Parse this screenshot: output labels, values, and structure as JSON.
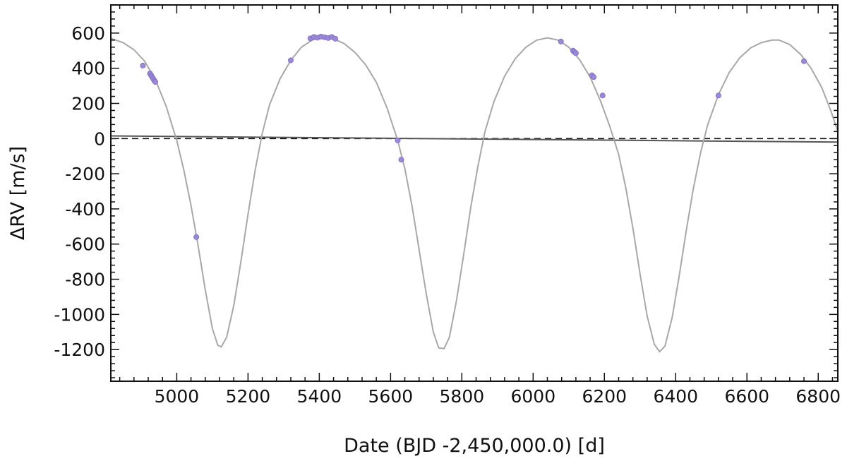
{
  "chart_data": {
    "type": "line",
    "title": "",
    "xlabel": "Date (BJD -2,450,000.0) [d]",
    "ylabel": "ΔRV [m/s]",
    "xlim": [
      4815,
      6855
    ],
    "ylim": [
      -1380,
      760
    ],
    "x_ticks": [
      5000,
      5200,
      5400,
      5600,
      5800,
      6000,
      6200,
      6400,
      6600,
      6800
    ],
    "y_ticks": [
      600,
      400,
      200,
      0,
      -200,
      -400,
      -600,
      -800,
      -1000,
      -1200
    ],
    "x_tick_labels": [
      "5000",
      "5200",
      "5400",
      "5600",
      "5800",
      "6000",
      "6200",
      "6400",
      "6600",
      "6800"
    ],
    "y_tick_labels": [
      "600",
      "400",
      "200",
      "0",
      "-200",
      "-400",
      "-600",
      "-800",
      "-1000",
      "-1200"
    ],
    "grid": false,
    "model_curve": {
      "color": "#a8a8a8",
      "points": [
        [
          4815,
          570
        ],
        [
          4850,
          545
        ],
        [
          4880,
          505
        ],
        [
          4910,
          440
        ],
        [
          4940,
          335
        ],
        [
          4970,
          185
        ],
        [
          5000,
          -10
        ],
        [
          5020,
          -180
        ],
        [
          5040,
          -380
        ],
        [
          5060,
          -610
        ],
        [
          5080,
          -860
        ],
        [
          5100,
          -1080
        ],
        [
          5115,
          -1175
        ],
        [
          5125,
          -1185
        ],
        [
          5140,
          -1130
        ],
        [
          5160,
          -950
        ],
        [
          5180,
          -700
        ],
        [
          5200,
          -430
        ],
        [
          5220,
          -180
        ],
        [
          5240,
          30
        ],
        [
          5260,
          190
        ],
        [
          5290,
          340
        ],
        [
          5320,
          445
        ],
        [
          5350,
          520
        ],
        [
          5380,
          560
        ],
        [
          5410,
          578
        ],
        [
          5440,
          568
        ],
        [
          5470,
          540
        ],
        [
          5500,
          490
        ],
        [
          5530,
          420
        ],
        [
          5560,
          320
        ],
        [
          5590,
          175
        ],
        [
          5620,
          -10
        ],
        [
          5640,
          -170
        ],
        [
          5660,
          -380
        ],
        [
          5680,
          -630
        ],
        [
          5700,
          -880
        ],
        [
          5720,
          -1100
        ],
        [
          5735,
          -1190
        ],
        [
          5750,
          -1195
        ],
        [
          5765,
          -1130
        ],
        [
          5785,
          -920
        ],
        [
          5805,
          -660
        ],
        [
          5825,
          -390
        ],
        [
          5845,
          -160
        ],
        [
          5865,
          40
        ],
        [
          5890,
          210
        ],
        [
          5920,
          355
        ],
        [
          5950,
          455
        ],
        [
          5980,
          520
        ],
        [
          6010,
          560
        ],
        [
          6040,
          573
        ],
        [
          6070,
          560
        ],
        [
          6100,
          520
        ],
        [
          6130,
          450
        ],
        [
          6160,
          350
        ],
        [
          6190,
          210
        ],
        [
          6215,
          70
        ],
        [
          6240,
          -90
        ],
        [
          6260,
          -280
        ],
        [
          6280,
          -510
        ],
        [
          6300,
          -770
        ],
        [
          6320,
          -1010
        ],
        [
          6340,
          -1170
        ],
        [
          6355,
          -1212
        ],
        [
          6370,
          -1180
        ],
        [
          6390,
          -1020
        ],
        [
          6410,
          -780
        ],
        [
          6430,
          -520
        ],
        [
          6450,
          -280
        ],
        [
          6470,
          -80
        ],
        [
          6490,
          80
        ],
        [
          6520,
          250
        ],
        [
          6550,
          375
        ],
        [
          6580,
          460
        ],
        [
          6610,
          515
        ],
        [
          6640,
          545
        ],
        [
          6670,
          560
        ],
        [
          6690,
          560
        ],
        [
          6720,
          535
        ],
        [
          6750,
          480
        ],
        [
          6780,
          400
        ],
        [
          6810,
          290
        ],
        [
          6835,
          160
        ],
        [
          6855,
          40
        ]
      ]
    },
    "trend_line": {
      "color": "#555555",
      "points": [
        [
          4815,
          15
        ],
        [
          6855,
          -20
        ]
      ]
    },
    "zero_line": {
      "style": "dashed",
      "color": "#111111",
      "y": 0
    },
    "series": [
      {
        "color": "#9c88d8",
        "x": [
          4905,
          4925,
          4928,
          4931,
          4934,
          4937,
          4940,
          5055,
          5320,
          5375,
          5385,
          5395,
          5405,
          5415,
          5425,
          5435,
          5445,
          5620,
          5630,
          6078,
          6112,
          6116,
          6120,
          6165,
          6170,
          6195,
          6520,
          6760
        ],
        "y": [
          415,
          370,
          360,
          350,
          340,
          330,
          322,
          -560,
          445,
          570,
          578,
          574,
          580,
          576,
          572,
          578,
          568,
          -10,
          -120,
          552,
          500,
          492,
          486,
          360,
          350,
          245,
          245,
          440
        ]
      }
    ]
  }
}
